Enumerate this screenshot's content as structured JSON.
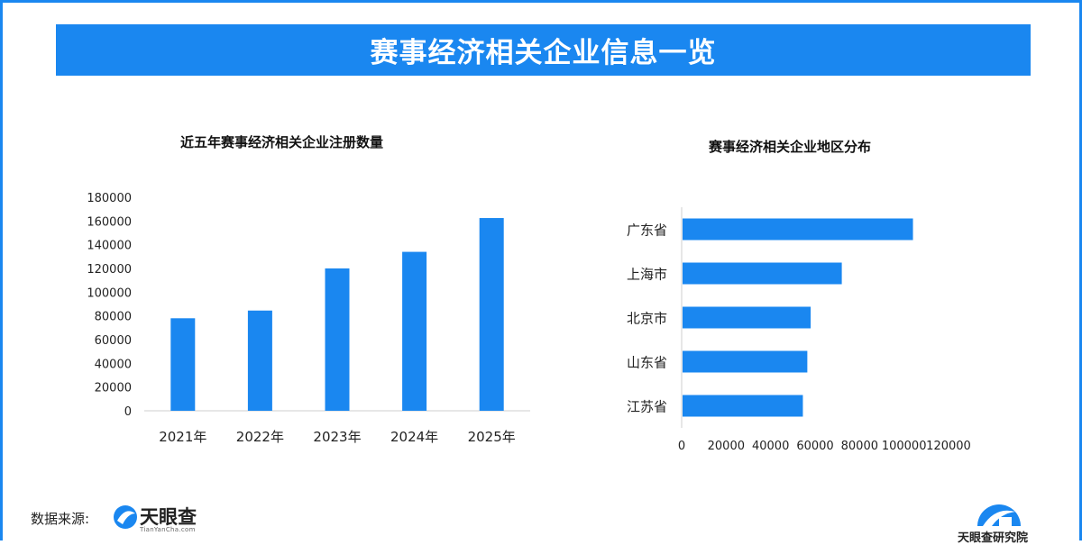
{
  "banner": {
    "title": "赛事经济相关企业信息一览"
  },
  "chart_data": [
    {
      "type": "bar",
      "title": "近五年赛事经济相关企业注册数量",
      "categories": [
        "2021年",
        "2022年",
        "2023年",
        "2024年",
        "2025年"
      ],
      "values": [
        78000,
        84500,
        120000,
        134000,
        162500
      ],
      "ylim": [
        0,
        180000
      ],
      "yticks": [
        0,
        20000,
        40000,
        60000,
        80000,
        100000,
        120000,
        140000,
        160000,
        180000
      ],
      "xlabel": "",
      "ylabel": "",
      "color": "#1a87f0"
    },
    {
      "type": "bar",
      "orientation": "horizontal",
      "title": "赛事经济相关企业地区分布",
      "categories": [
        "广东省",
        "上海市",
        "北京市",
        "山东省",
        "江苏省"
      ],
      "values": [
        104000,
        72000,
        58000,
        56500,
        54500
      ],
      "xlim": [
        0,
        120000
      ],
      "xticks": [
        0,
        20000,
        40000,
        60000,
        80000,
        100000,
        120000
      ],
      "color": "#1a87f0"
    }
  ],
  "footer": {
    "source_label": "数据来源:",
    "brand": "天眼查",
    "brand_sub": "TianYanCha.com",
    "research": "天眼查研究院"
  },
  "colors": {
    "accent": "#1a87f0"
  }
}
